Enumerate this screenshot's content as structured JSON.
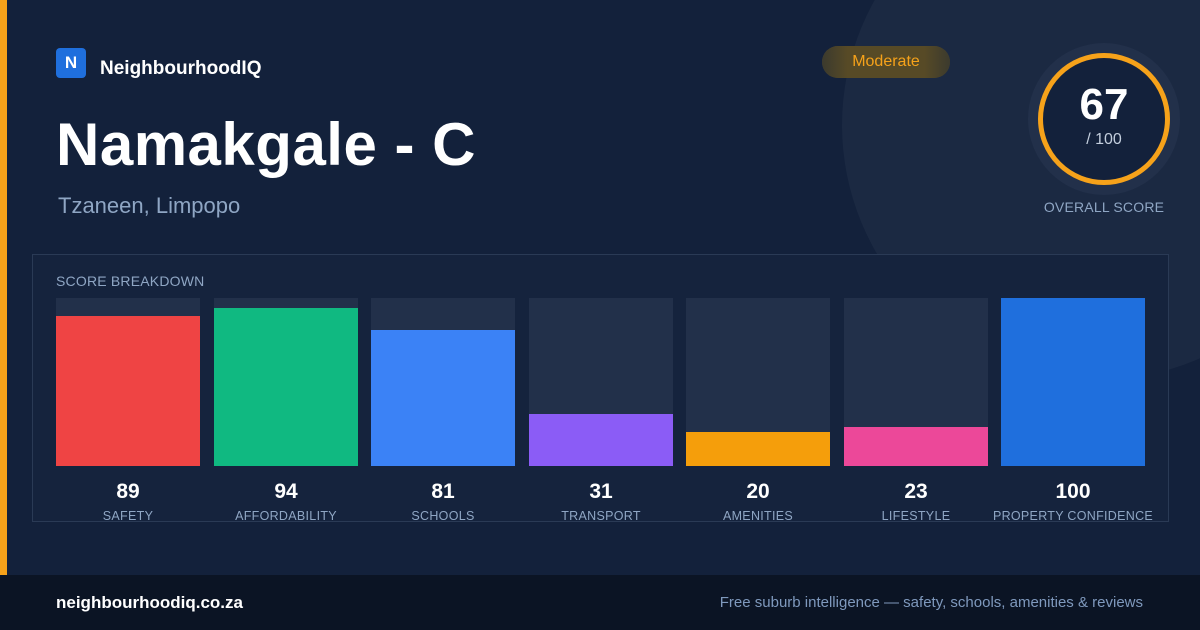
{
  "brand": {
    "logo_letter": "N",
    "name": "NeighbourhoodIQ"
  },
  "suburb": {
    "title": "Namakgale - C",
    "location": "Tzaneen, Limpopo"
  },
  "rating_badge": {
    "label": "Moderate",
    "color": "#f6a21a"
  },
  "overall_score": {
    "value": "67",
    "max": "/ 100",
    "caption": "OVERALL SCORE",
    "ring_color": "#f6a21a"
  },
  "accent_color": "#f6a21a",
  "breakdown": {
    "title": "SCORE BREAKDOWN",
    "max_value": 100,
    "bars": [
      {
        "label": "SAFETY",
        "value": 89,
        "color": "#ef4444"
      },
      {
        "label": "AFFORDABILITY",
        "value": 94,
        "color": "#10b981"
      },
      {
        "label": "SCHOOLS",
        "value": 81,
        "color": "#3b82f6"
      },
      {
        "label": "TRANSPORT",
        "value": 31,
        "color": "#8b5cf6"
      },
      {
        "label": "AMENITIES",
        "value": 20,
        "color": "#f59e0b"
      },
      {
        "label": "LIFESTYLE",
        "value": 23,
        "color": "#ec4899"
      },
      {
        "label": "PROPERTY CONFIDENCE",
        "value": 100,
        "color": "#1f6fdd"
      }
    ]
  },
  "footer": {
    "url": "neighbourhoodiq.co.za",
    "tagline": "Free suburb intelligence — safety, schools, amenities & reviews"
  }
}
